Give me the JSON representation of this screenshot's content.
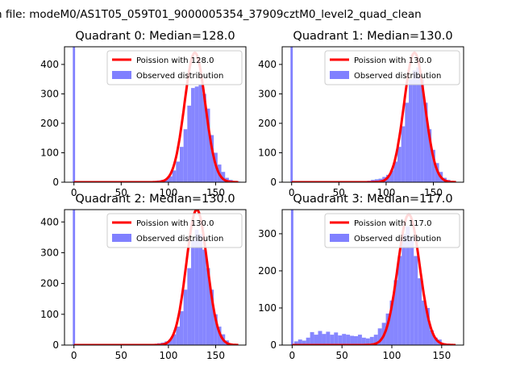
{
  "figure": {
    "suptitle": "n file: modeM0/AS1T05_059T01_9000005354_37909cztM0_level2_quad_clean"
  },
  "legend": {
    "observed_label": "Observed distribution",
    "poisson_prefix": "Poission with"
  },
  "colors": {
    "poisson_line": "#ff0000",
    "histogram": "#8080ff",
    "histogram_edge": "#6666ee"
  },
  "chart_data": [
    {
      "type": "bar",
      "title": "Quadrant 0: Median=128.0",
      "median": 128.0,
      "poisson_label": "Poission with 128.0",
      "xlim": [
        -10,
        182
      ],
      "ylim": [
        0,
        460
      ],
      "xticks": [
        0,
        50,
        100,
        150
      ],
      "yticks": [
        0,
        100,
        200,
        300,
        400
      ],
      "spike": {
        "x": 0,
        "value": 460
      },
      "hist_bins": [
        [
          60,
          1
        ],
        [
          70,
          1
        ],
        [
          76,
          2
        ],
        [
          82,
          3
        ],
        [
          86,
          4
        ],
        [
          90,
          6
        ],
        [
          94,
          8
        ],
        [
          98,
          10
        ],
        [
          102,
          20
        ],
        [
          106,
          40
        ],
        [
          110,
          70
        ],
        [
          114,
          120
        ],
        [
          118,
          180
        ],
        [
          122,
          260
        ],
        [
          126,
          320
        ],
        [
          130,
          325
        ],
        [
          134,
          330
        ],
        [
          138,
          300
        ],
        [
          142,
          250
        ],
        [
          146,
          160
        ],
        [
          150,
          100
        ],
        [
          154,
          60
        ],
        [
          158,
          35
        ],
        [
          162,
          15
        ],
        [
          166,
          8
        ],
        [
          170,
          4
        ],
        [
          174,
          2
        ]
      ],
      "poisson_peak": 440
    },
    {
      "type": "bar",
      "title": "Quadrant 1: Median=130.0",
      "median": 130.0,
      "poisson_label": "Poission with 130.0",
      "xlim": [
        -10,
        182
      ],
      "ylim": [
        0,
        460
      ],
      "xticks": [
        0,
        50,
        100,
        150
      ],
      "yticks": [
        0,
        100,
        200,
        300,
        400
      ],
      "spike": {
        "x": 0,
        "value": 460
      },
      "hist_bins": [
        [
          60,
          1
        ],
        [
          70,
          2
        ],
        [
          76,
          3
        ],
        [
          82,
          5
        ],
        [
          86,
          8
        ],
        [
          90,
          10
        ],
        [
          94,
          12
        ],
        [
          98,
          18
        ],
        [
          102,
          25
        ],
        [
          106,
          40
        ],
        [
          110,
          70
        ],
        [
          114,
          120
        ],
        [
          118,
          190
        ],
        [
          122,
          270
        ],
        [
          126,
          350
        ],
        [
          130,
          380
        ],
        [
          134,
          390
        ],
        [
          138,
          350
        ],
        [
          142,
          270
        ],
        [
          146,
          180
        ],
        [
          150,
          110
        ],
        [
          154,
          65
        ],
        [
          158,
          35
        ],
        [
          162,
          15
        ],
        [
          166,
          8
        ],
        [
          170,
          3
        ],
        [
          174,
          1
        ]
      ],
      "poisson_peak": 440
    },
    {
      "type": "bar",
      "title": "Quadrant 2: Median=130.0",
      "median": 130.0,
      "poisson_label": "Poission with 130.0",
      "xlim": [
        -10,
        182
      ],
      "ylim": [
        0,
        440
      ],
      "xticks": [
        0,
        50,
        100,
        150
      ],
      "yticks": [
        0,
        100,
        200,
        300,
        400
      ],
      "spike": {
        "x": 0,
        "value": 440
      },
      "hist_bins": [
        [
          60,
          1
        ],
        [
          70,
          1
        ],
        [
          76,
          2
        ],
        [
          82,
          3
        ],
        [
          86,
          4
        ],
        [
          90,
          6
        ],
        [
          94,
          8
        ],
        [
          98,
          12
        ],
        [
          102,
          18
        ],
        [
          106,
          35
        ],
        [
          110,
          60
        ],
        [
          114,
          110
        ],
        [
          118,
          180
        ],
        [
          122,
          250
        ],
        [
          126,
          340
        ],
        [
          130,
          375
        ],
        [
          134,
          360
        ],
        [
          138,
          310
        ],
        [
          142,
          250
        ],
        [
          146,
          180
        ],
        [
          150,
          100
        ],
        [
          154,
          60
        ],
        [
          158,
          35
        ],
        [
          162,
          15
        ],
        [
          166,
          5
        ],
        [
          170,
          2
        ],
        [
          174,
          1
        ]
      ],
      "poisson_peak": 440
    },
    {
      "type": "bar",
      "title": "Quadrant 3: Median=117.0",
      "median": 117.0,
      "poisson_label": "Poission with 117.0",
      "xlim": [
        -10,
        172
      ],
      "ylim": [
        0,
        365
      ],
      "xticks": [
        0,
        50,
        100,
        150
      ],
      "yticks": [
        0,
        100,
        200,
        300
      ],
      "spike": {
        "x": 0,
        "value": 365
      },
      "hist_bins": [
        [
          4,
          10
        ],
        [
          8,
          15
        ],
        [
          12,
          12
        ],
        [
          16,
          20
        ],
        [
          20,
          35
        ],
        [
          24,
          28
        ],
        [
          28,
          38
        ],
        [
          32,
          30
        ],
        [
          36,
          36
        ],
        [
          40,
          28
        ],
        [
          44,
          34
        ],
        [
          48,
          26
        ],
        [
          52,
          30
        ],
        [
          56,
          28
        ],
        [
          60,
          25
        ],
        [
          64,
          24
        ],
        [
          68,
          28
        ],
        [
          72,
          20
        ],
        [
          76,
          18
        ],
        [
          80,
          22
        ],
        [
          84,
          28
        ],
        [
          88,
          45
        ],
        [
          92,
          60
        ],
        [
          96,
          85
        ],
        [
          100,
          120
        ],
        [
          104,
          175
        ],
        [
          108,
          240
        ],
        [
          112,
          300
        ],
        [
          116,
          320
        ],
        [
          120,
          290
        ],
        [
          124,
          240
        ],
        [
          128,
          180
        ],
        [
          132,
          120
        ],
        [
          136,
          100
        ],
        [
          140,
          40
        ],
        [
          144,
          20
        ],
        [
          148,
          15
        ],
        [
          152,
          5
        ],
        [
          156,
          4
        ]
      ],
      "poisson_peak": 352
    }
  ]
}
